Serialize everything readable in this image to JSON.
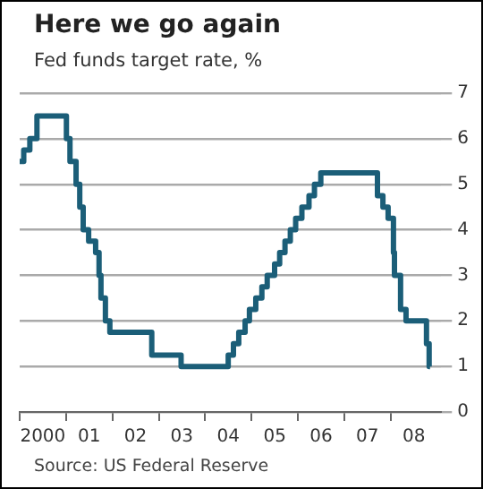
{
  "chart_data": {
    "type": "step",
    "title": "Here we go again",
    "subtitle": "Fed funds target rate, %",
    "annotations": [
      "Source: US Federal Reserve"
    ],
    "x": [
      "2000-01-01",
      "2000-02-02",
      "2000-03-21",
      "2000-05-16",
      "2001-01-03",
      "2001-01-31",
      "2001-03-20",
      "2001-04-18",
      "2001-05-15",
      "2001-06-27",
      "2001-08-21",
      "2001-09-17",
      "2001-10-02",
      "2001-11-06",
      "2001-12-11",
      "2002-11-06",
      "2003-06-25",
      "2004-06-30",
      "2004-08-10",
      "2004-09-21",
      "2004-11-10",
      "2004-12-14",
      "2005-02-02",
      "2005-03-22",
      "2005-05-03",
      "2005-06-30",
      "2005-08-09",
      "2005-09-20",
      "2005-11-01",
      "2005-12-13",
      "2006-01-31",
      "2006-03-28",
      "2006-05-10",
      "2006-06-29",
      "2007-09-18",
      "2007-10-31",
      "2007-12-11",
      "2008-01-22",
      "2008-01-30",
      "2008-03-18",
      "2008-04-30",
      "2008-10-08",
      "2008-10-29",
      "2008-11-05"
    ],
    "series": [
      {
        "color": "#1b5e78",
        "values": [
          5.5,
          5.75,
          6.0,
          6.5,
          6.0,
          5.5,
          5.0,
          4.5,
          4.0,
          3.75,
          3.5,
          3.0,
          2.5,
          2.0,
          1.75,
          1.25,
          1.0,
          1.25,
          1.5,
          1.75,
          2.0,
          2.25,
          2.5,
          2.75,
          3.0,
          3.25,
          3.5,
          3.75,
          4.0,
          4.25,
          4.5,
          4.75,
          5.0,
          5.25,
          4.75,
          4.5,
          4.25,
          3.5,
          3.0,
          2.25,
          2.0,
          1.5,
          1.0,
          1.0
        ]
      }
    ],
    "xlim": [
      "2000-01-01",
      "2009-02-01"
    ],
    "xticks": [
      {
        "value": "2000-01-01",
        "label": null
      },
      {
        "value": "2000-07-01",
        "label": "2000"
      },
      {
        "value": "2001-01-01",
        "label": null
      },
      {
        "value": "2001-07-01",
        "label": "01"
      },
      {
        "value": "2002-01-01",
        "label": null
      },
      {
        "value": "2002-07-01",
        "label": "02"
      },
      {
        "value": "2003-01-01",
        "label": null
      },
      {
        "value": "2003-07-01",
        "label": "03"
      },
      {
        "value": "2004-01-01",
        "label": null
      },
      {
        "value": "2004-07-01",
        "label": "04"
      },
      {
        "value": "2005-01-01",
        "label": null
      },
      {
        "value": "2005-07-01",
        "label": "05"
      },
      {
        "value": "2006-01-01",
        "label": null
      },
      {
        "value": "2006-07-01",
        "label": "06"
      },
      {
        "value": "2007-01-01",
        "label": null
      },
      {
        "value": "2007-07-01",
        "label": "07"
      },
      {
        "value": "2008-01-01",
        "label": null
      },
      {
        "value": "2008-07-01",
        "label": "08"
      }
    ],
    "ylim": [
      0,
      7
    ],
    "yticks": [
      0,
      1,
      2,
      3,
      4,
      5,
      6,
      7
    ],
    "grid": "y",
    "legend": false,
    "marker": "none",
    "line_style": "solid"
  }
}
